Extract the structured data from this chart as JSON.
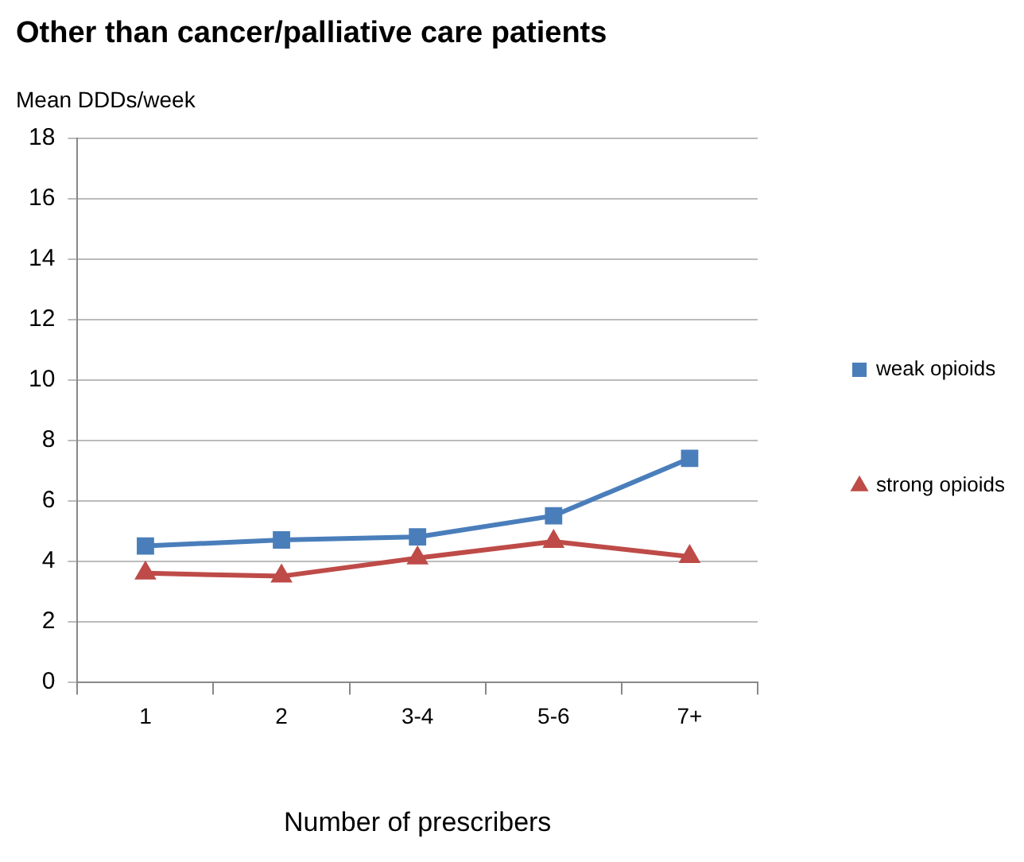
{
  "chart_data": {
    "type": "line",
    "title": "Other than cancer/palliative care patients",
    "xlabel": "Number of prescribers",
    "ylabel": "Mean DDDs/week",
    "categories": [
      "1",
      "2",
      "3-4",
      "5-6",
      "7+"
    ],
    "series": [
      {
        "name": "weak opioids",
        "color": "#4a7ebb",
        "marker": "square",
        "values": [
          4.5,
          4.7,
          4.8,
          5.5,
          7.4
        ]
      },
      {
        "name": "strong opioids",
        "color": "#be4b48",
        "marker": "triangle",
        "values": [
          3.6,
          3.5,
          4.1,
          4.65,
          4.15
        ]
      }
    ],
    "ylim": [
      0,
      18
    ],
    "yticks": [
      0,
      2,
      4,
      6,
      8,
      10,
      12,
      14,
      16,
      18
    ],
    "grid": "y",
    "legend": "right",
    "line_style": "solid"
  }
}
